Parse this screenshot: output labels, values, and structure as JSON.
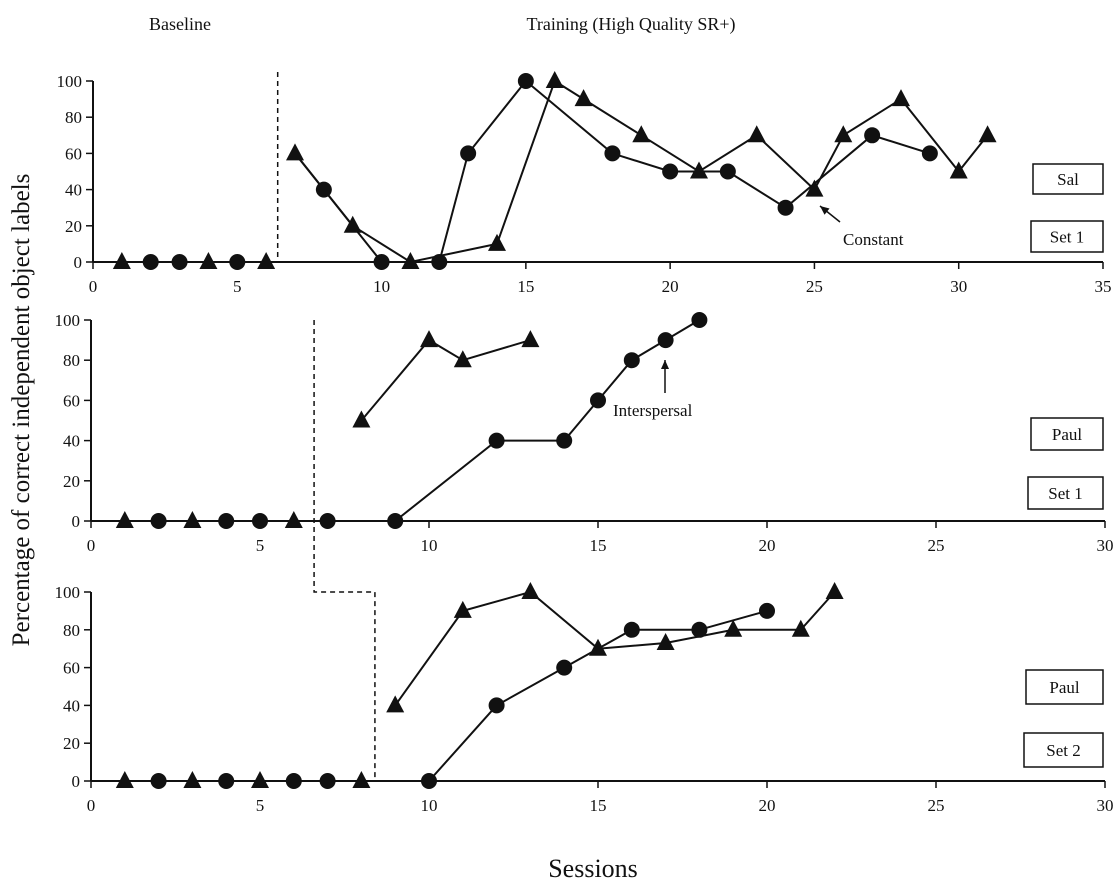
{
  "phase_labels": {
    "baseline": "Baseline",
    "training": "Training (High Quality SR+)"
  },
  "ylabel": "Percentage of correct independent object labels",
  "xlabel": "Sessions",
  "annotations": {
    "constant": "Constant",
    "interspersal": "Interspersal"
  },
  "chart_data": [
    {
      "type": "line",
      "participant": "Sal",
      "set": "Set 1",
      "xlim": [
        0,
        35
      ],
      "ylim": [
        0,
        100
      ],
      "xticks": [
        0,
        5,
        10,
        15,
        20,
        25,
        30,
        35
      ],
      "yticks": [
        0,
        20,
        40,
        60,
        80,
        100
      ],
      "phase_change_after_session": 6.4,
      "series": [
        {
          "marker": "circle",
          "points": [
            [
              2,
              0
            ],
            [
              3,
              0
            ],
            [
              5,
              0
            ],
            [
              8,
              40
            ],
            [
              10,
              0
            ],
            [
              12,
              0
            ],
            [
              13,
              60
            ],
            [
              15,
              100
            ],
            [
              18,
              60
            ],
            [
              20,
              50
            ],
            [
              22,
              50
            ],
            [
              24,
              30
            ],
            [
              27,
              70
            ],
            [
              29,
              60
            ]
          ],
          "connect_from": 8
        },
        {
          "marker": "triangle",
          "points": [
            [
              1,
              0
            ],
            [
              4,
              0
            ],
            [
              6,
              0
            ],
            [
              7,
              60
            ],
            [
              9,
              20
            ],
            [
              11,
              0
            ],
            [
              14,
              10
            ],
            [
              16,
              100
            ],
            [
              17,
              90
            ],
            [
              19,
              70
            ],
            [
              21,
              50
            ],
            [
              23,
              70
            ],
            [
              25,
              40
            ],
            [
              26,
              70
            ],
            [
              28,
              90
            ],
            [
              30,
              50
            ],
            [
              31,
              70
            ]
          ],
          "connect_from": 7
        }
      ],
      "segments": [
        [
          [
            7,
            60
          ],
          [
            8,
            40
          ]
        ]
      ],
      "annotation": {
        "text_key": "constant",
        "points_to": [
          25,
          40
        ]
      }
    },
    {
      "type": "line",
      "participant": "Paul",
      "set": "Set 1",
      "xlim": [
        0,
        30
      ],
      "ylim": [
        0,
        100
      ],
      "xticks": [
        0,
        5,
        10,
        15,
        20,
        25,
        30
      ],
      "yticks": [
        0,
        20,
        40,
        60,
        80,
        100
      ],
      "phase_change_after_session": 6.6,
      "series": [
        {
          "marker": "circle",
          "points": [
            [
              2,
              0
            ],
            [
              4,
              0
            ],
            [
              5,
              0
            ],
            [
              7,
              0
            ],
            [
              9,
              0
            ],
            [
              12,
              40
            ],
            [
              14,
              40
            ],
            [
              15,
              60
            ],
            [
              16,
              80
            ],
            [
              17,
              90
            ],
            [
              18,
              100
            ]
          ],
          "connect_from": 9
        },
        {
          "marker": "triangle",
          "points": [
            [
              1,
              0
            ],
            [
              3,
              0
            ],
            [
              6,
              0
            ],
            [
              8,
              50
            ],
            [
              10,
              90
            ],
            [
              11,
              80
            ],
            [
              13,
              90
            ]
          ],
          "connect_from": 8
        }
      ],
      "segments": [],
      "annotation": {
        "text_key": "interspersal",
        "points_to": [
          17,
          90
        ]
      }
    },
    {
      "type": "line",
      "participant": "Paul",
      "set": "Set 2",
      "xlim": [
        0,
        30
      ],
      "ylim": [
        0,
        100
      ],
      "xticks": [
        0,
        5,
        10,
        15,
        20,
        25,
        30
      ],
      "yticks": [
        0,
        20,
        40,
        60,
        80,
        100
      ],
      "phase_change_after_session": 8.4,
      "series": [
        {
          "marker": "circle",
          "points": [
            [
              2,
              0
            ],
            [
              4,
              0
            ],
            [
              6,
              0
            ],
            [
              7,
              0
            ],
            [
              10,
              0
            ],
            [
              12,
              40
            ],
            [
              14,
              60
            ],
            [
              16,
              80
            ],
            [
              18,
              80
            ],
            [
              20,
              90
            ]
          ],
          "connect_from": 10
        },
        {
          "marker": "triangle",
          "points": [
            [
              1,
              0
            ],
            [
              3,
              0
            ],
            [
              5,
              0
            ],
            [
              8,
              0
            ],
            [
              9,
              40
            ],
            [
              11,
              90
            ],
            [
              13,
              100
            ],
            [
              15,
              70
            ],
            [
              17,
              73
            ],
            [
              19,
              80
            ],
            [
              21,
              80
            ],
            [
              22,
              100
            ]
          ],
          "connect_from": 9
        }
      ],
      "segments": [],
      "annotation": null
    }
  ]
}
